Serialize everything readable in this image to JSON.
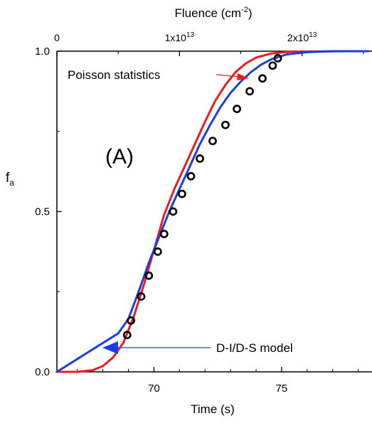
{
  "chart_data": {
    "type": "line",
    "xlabel": "Time (s)",
    "ylabel": "f",
    "ylabel_sub": "a",
    "top_axis_label": "Fluence (cm",
    "top_axis_label_sup": "-2",
    "top_axis_label_end": ")",
    "xlim": [
      66.2,
      78.4
    ],
    "ylim": [
      0.0,
      1.0
    ],
    "x_ticks": [
      70,
      75
    ],
    "x_tick_labels": [
      "70",
      "75"
    ],
    "y_ticks": [
      0.0,
      0.5,
      1.0
    ],
    "y_tick_labels": [
      "0.0",
      "0.5",
      "1.0"
    ],
    "top_ticks": [
      {
        "time": 66.2,
        "base": "0",
        "exp": ""
      },
      {
        "time": 71.0,
        "base": "1x10",
        "exp": "13"
      },
      {
        "time": 75.8,
        "base": "2x10",
        "exp": "13"
      }
    ],
    "panel_label": "(A)",
    "grid": false,
    "series": [
      {
        "name": "Poisson statistics",
        "color": "#ee1c1c",
        "kind": "line",
        "points": [
          [
            66.2,
            0.0
          ],
          [
            67.0,
            0.0
          ],
          [
            67.6,
            0.005
          ],
          [
            68.0,
            0.018
          ],
          [
            68.4,
            0.045
          ],
          [
            68.8,
            0.09
          ],
          [
            69.2,
            0.17
          ],
          [
            69.6,
            0.27
          ],
          [
            70.0,
            0.38
          ],
          [
            70.4,
            0.49
          ],
          [
            70.8,
            0.57
          ],
          [
            71.2,
            0.64
          ],
          [
            71.6,
            0.71
          ],
          [
            72.0,
            0.78
          ],
          [
            72.4,
            0.845
          ],
          [
            72.8,
            0.895
          ],
          [
            73.2,
            0.935
          ],
          [
            73.6,
            0.962
          ],
          [
            74.0,
            0.98
          ],
          [
            74.6,
            0.993
          ],
          [
            75.4,
            0.999
          ],
          [
            78.4,
            1.0
          ]
        ]
      },
      {
        "name": "D-I/D-S model",
        "color": "#1a3fe0",
        "kind": "line",
        "points": [
          [
            66.2,
            0.0
          ],
          [
            67.4,
            0.06
          ],
          [
            68.6,
            0.12
          ],
          [
            69.0,
            0.165
          ],
          [
            69.4,
            0.25
          ],
          [
            69.8,
            0.34
          ],
          [
            70.2,
            0.42
          ],
          [
            70.6,
            0.5
          ],
          [
            71.0,
            0.57
          ],
          [
            71.4,
            0.64
          ],
          [
            71.8,
            0.71
          ],
          [
            72.2,
            0.77
          ],
          [
            72.6,
            0.825
          ],
          [
            73.0,
            0.87
          ],
          [
            73.4,
            0.905
          ],
          [
            73.8,
            0.935
          ],
          [
            74.2,
            0.958
          ],
          [
            74.6,
            0.975
          ],
          [
            75.2,
            0.99
          ],
          [
            76.0,
            0.997
          ],
          [
            77.0,
            1.0
          ],
          [
            78.4,
            1.0
          ]
        ]
      },
      {
        "name": "data",
        "color": "#000000",
        "kind": "scatter",
        "points": [
          [
            68.95,
            0.115
          ],
          [
            69.1,
            0.16
          ],
          [
            69.5,
            0.235
          ],
          [
            69.8,
            0.3
          ],
          [
            70.15,
            0.375
          ],
          [
            70.4,
            0.43
          ],
          [
            70.75,
            0.5
          ],
          [
            71.1,
            0.555
          ],
          [
            71.45,
            0.61
          ],
          [
            71.8,
            0.665
          ],
          [
            72.3,
            0.72
          ],
          [
            72.8,
            0.77
          ],
          [
            73.25,
            0.82
          ],
          [
            73.75,
            0.875
          ],
          [
            74.25,
            0.915
          ],
          [
            74.65,
            0.955
          ],
          [
            74.85,
            0.978
          ]
        ]
      }
    ],
    "annotations": [
      {
        "text": "Poisson statistics",
        "color": "#ee1c1c"
      },
      {
        "text": "D-I/D-S model",
        "color": "#1a3fe0"
      }
    ]
  }
}
